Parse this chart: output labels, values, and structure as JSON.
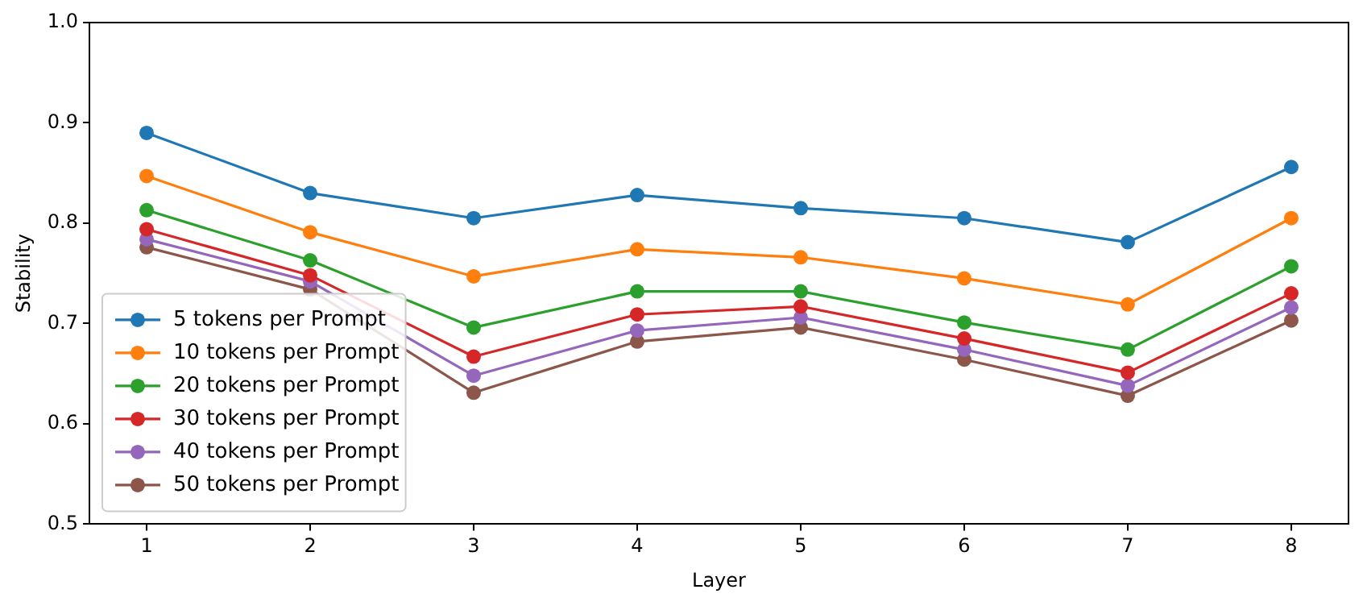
{
  "chart_data": {
    "type": "line",
    "xlabel": "Layer",
    "ylabel": "Stability",
    "x": [
      1,
      2,
      3,
      4,
      5,
      6,
      7,
      8
    ],
    "xlim": [
      0.65,
      8.35
    ],
    "xticks": [
      1,
      2,
      3,
      4,
      5,
      6,
      7,
      8
    ],
    "ylim": [
      0.5,
      1.0
    ],
    "yticks": [
      {
        "value": 0.5,
        "label": "0.5"
      },
      {
        "value": 0.6,
        "label": "0.6"
      },
      {
        "value": 0.7,
        "label": "0.7"
      },
      {
        "value": 0.8,
        "label": "0.8"
      },
      {
        "value": 0.9,
        "label": "0.9"
      },
      {
        "value": 1.0,
        "label": "1.0"
      }
    ],
    "grid": false,
    "legend": "bottom left",
    "marker": "circle",
    "line_style": "solid",
    "series": [
      {
        "name": "5 tokens per Prompt",
        "color": "#1f77b4",
        "values": [
          0.89,
          0.83,
          0.805,
          0.828,
          0.815,
          0.805,
          0.781,
          0.856
        ]
      },
      {
        "name": "10 tokens per Prompt",
        "color": "#ff7f0e",
        "values": [
          0.847,
          0.791,
          0.747,
          0.774,
          0.766,
          0.745,
          0.719,
          0.805
        ]
      },
      {
        "name": "20 tokens per Prompt",
        "color": "#2ca02c",
        "values": [
          0.813,
          0.763,
          0.696,
          0.732,
          0.732,
          0.701,
          0.674,
          0.757
        ]
      },
      {
        "name": "30 tokens per Prompt",
        "color": "#d62728",
        "values": [
          0.794,
          0.748,
          0.667,
          0.709,
          0.717,
          0.685,
          0.651,
          0.73
        ]
      },
      {
        "name": "40 tokens per Prompt",
        "color": "#9467bd",
        "values": [
          0.784,
          0.742,
          0.648,
          0.693,
          0.706,
          0.674,
          0.638,
          0.716
        ]
      },
      {
        "name": "50 tokens per Prompt",
        "color": "#8c564b",
        "values": [
          0.776,
          0.734,
          0.631,
          0.682,
          0.696,
          0.664,
          0.628,
          0.703
        ]
      }
    ]
  }
}
